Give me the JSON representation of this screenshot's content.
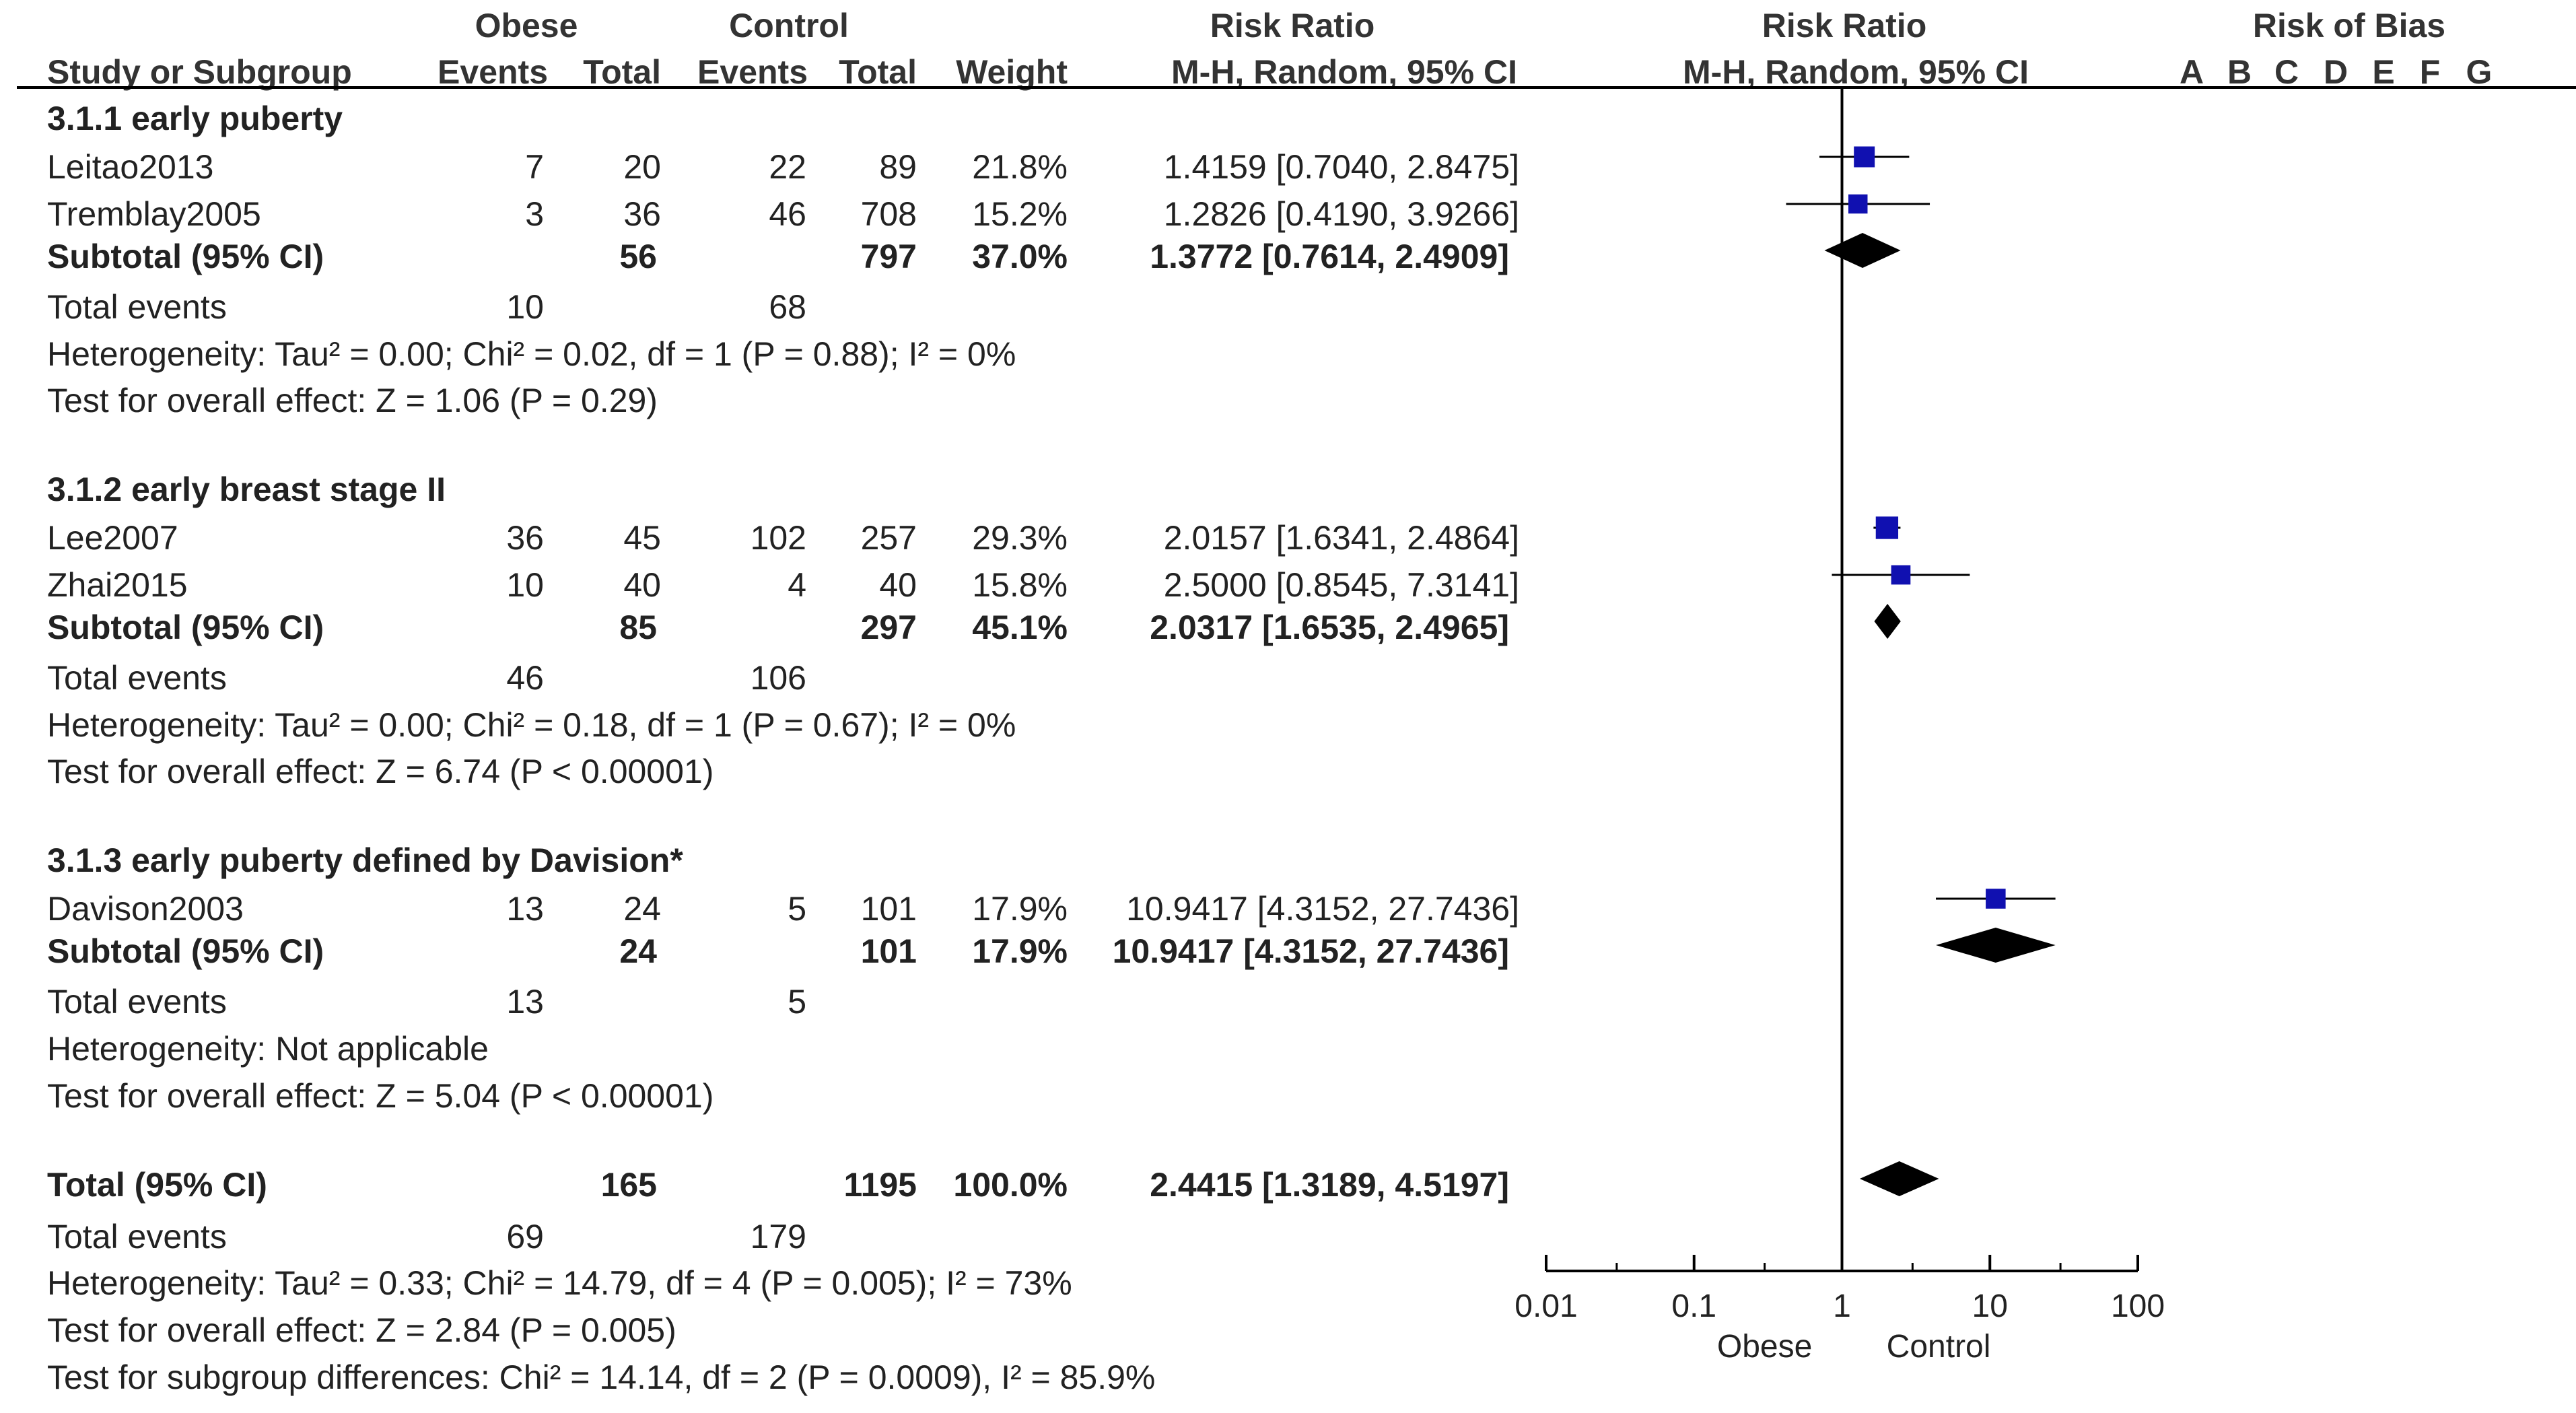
{
  "header": {
    "obese": "Obese",
    "control": "Control",
    "risk_ratio": "Risk Ratio",
    "risk_ratio_plot": "Risk Ratio",
    "risk_of_bias": "Risk of Bias",
    "study_or_subgroup": "Study or Subgroup",
    "events_obese": "Events",
    "total_obese": "Total",
    "events_control": "Events",
    "total_control": "Total",
    "weight": "Weight",
    "method": "M-H, Random, 95% CI",
    "method_plot": "M-H, Random, 95% CI",
    "bias_domains": [
      "A",
      "B",
      "C",
      "D",
      "E",
      "F",
      "G"
    ]
  },
  "groups": [
    {
      "title": "3.1.1 early puberty",
      "studies": [
        {
          "name": "Leitao2013",
          "e1": "7",
          "t1": "20",
          "e2": "22",
          "t2": "89",
          "weight": "21.8%",
          "ci": "1.4159 [0.7040, 2.8475]"
        },
        {
          "name": "Tremblay2005",
          "e1": "3",
          "t1": "36",
          "e2": "46",
          "t2": "708",
          "weight": "15.2%",
          "ci": "1.2826 [0.4190, 3.9266]"
        }
      ],
      "subtotal": {
        "label": "Subtotal (95% CI)",
        "t1": "56",
        "t2": "797",
        "weight": "37.0%",
        "ci": "1.3772 [0.7614, 2.4909]"
      },
      "total_events": {
        "label": "Total events",
        "e1": "10",
        "e2": "68"
      },
      "heterogeneity": "Heterogeneity: Tau² = 0.00; Chi² = 0.02, df = 1 (P = 0.88); I² = 0%",
      "overall": "Test for overall effect: Z = 1.06 (P = 0.29)"
    },
    {
      "title": "3.1.2 early breast stage II",
      "studies": [
        {
          "name": "Lee2007",
          "e1": "36",
          "t1": "45",
          "e2": "102",
          "t2": "257",
          "weight": "29.3%",
          "ci": "2.0157 [1.6341, 2.4864]"
        },
        {
          "name": "Zhai2015",
          "e1": "10",
          "t1": "40",
          "e2": "4",
          "t2": "40",
          "weight": "15.8%",
          "ci": "2.5000 [0.8545, 7.3141]"
        }
      ],
      "subtotal": {
        "label": "Subtotal (95% CI)",
        "t1": "85",
        "t2": "297",
        "weight": "45.1%",
        "ci": "2.0317 [1.6535, 2.4965]"
      },
      "total_events": {
        "label": "Total events",
        "e1": "46",
        "e2": "106"
      },
      "heterogeneity": "Heterogeneity: Tau² = 0.00; Chi² = 0.18, df = 1 (P = 0.67); I² = 0%",
      "overall": "Test for overall effect: Z = 6.74 (P < 0.00001)"
    },
    {
      "title": "3.1.3 early puberty defined by Davision*",
      "studies": [
        {
          "name": "Davison2003",
          "e1": "13",
          "t1": "24",
          "e2": "5",
          "t2": "101",
          "weight": "17.9%",
          "ci": "10.9417 [4.3152, 27.7436]"
        }
      ],
      "subtotal": {
        "label": "Subtotal (95% CI)",
        "t1": "24",
        "t2": "101",
        "weight": "17.9%",
        "ci": "10.9417 [4.3152, 27.7436]"
      },
      "total_events": {
        "label": "Total events",
        "e1": "13",
        "e2": "5"
      },
      "heterogeneity": "Heterogeneity: Not applicable",
      "overall": "Test for overall effect: Z = 5.04 (P < 0.00001)"
    }
  ],
  "total": {
    "label": "Total (95% CI)",
    "t1": "165",
    "t2": "1195",
    "weight": "100.0%",
    "ci": "2.4415 [1.3189, 4.5197]",
    "total_events": {
      "label": "Total events",
      "e1": "69",
      "e2": "179"
    },
    "heterogeneity": "Heterogeneity: Tau² = 0.33; Chi² = 14.79, df = 4 (P = 0.005); I² = 73%",
    "overall": "Test for overall effect: Z = 2.84 (P = 0.005)",
    "subgroup": "Test for subgroup differences: Chi² = 14.14, df = 2 (P = 0.0009), I² = 85.9%"
  },
  "chart_data": {
    "type": "forest",
    "scale": "log",
    "xlim": [
      0.01,
      100
    ],
    "ticks": [
      "0.01",
      "0.1",
      "1",
      "10",
      "100"
    ],
    "xlabel_left": "Obese",
    "xlabel_right": "Control",
    "null_value": 1,
    "studies": [
      {
        "name": "Leitao2013",
        "rr": 1.4159,
        "lo": 0.704,
        "hi": 2.8475,
        "weight": 21.8
      },
      {
        "name": "Tremblay2005",
        "rr": 1.2826,
        "lo": 0.419,
        "hi": 3.9266,
        "weight": 15.2
      },
      {
        "name": "Lee2007",
        "rr": 2.0157,
        "lo": 1.6341,
        "hi": 2.4864,
        "weight": 29.3
      },
      {
        "name": "Zhai2015",
        "rr": 2.5,
        "lo": 0.8545,
        "hi": 7.3141,
        "weight": 15.8
      },
      {
        "name": "Davison2003",
        "rr": 10.9417,
        "lo": 4.3152,
        "hi": 27.7436,
        "weight": 17.9
      }
    ],
    "subtotals": [
      {
        "name": "3.1.1 early puberty",
        "rr": 1.3772,
        "lo": 0.7614,
        "hi": 2.4909
      },
      {
        "name": "3.1.2 early breast stage II",
        "rr": 2.0317,
        "lo": 1.6535,
        "hi": 2.4965
      },
      {
        "name": "3.1.3 early puberty defined by Davision*",
        "rr": 10.9417,
        "lo": 4.3152,
        "hi": 27.7436
      }
    ],
    "overall": {
      "name": "Total (95% CI)",
      "rr": 2.4415,
      "lo": 1.3189,
      "hi": 4.5197
    },
    "colors": {
      "square": "#1010b0",
      "diamond": "#000000",
      "line": "#000000"
    }
  }
}
